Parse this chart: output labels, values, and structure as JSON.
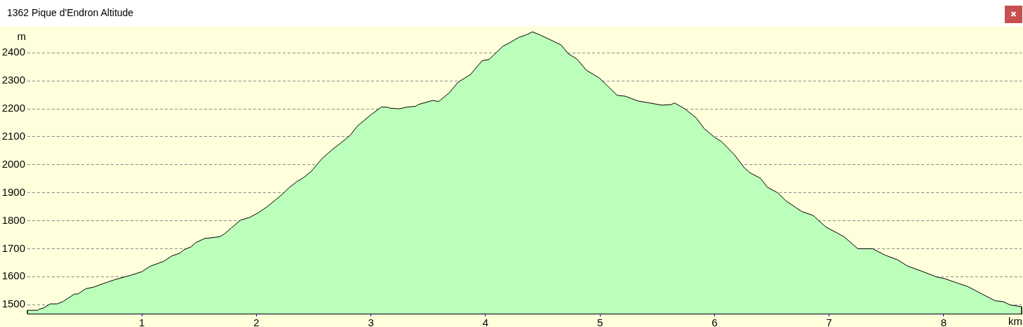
{
  "chart_data": {
    "type": "area",
    "title": "1362 Pique d'Endron Altitude",
    "xlabel": "km",
    "ylabel": "m",
    "x": [
      0,
      0.09,
      0.1,
      0.14,
      0.2,
      0.26,
      0.31,
      0.41,
      0.44,
      0.51,
      0.58,
      0.68,
      0.76,
      0.9,
      1.0,
      1.07,
      1.19,
      1.26,
      1.33,
      1.37,
      1.43,
      1.47,
      1.55,
      1.58,
      1.68,
      1.72,
      1.78,
      1.86,
      1.94,
      2.01,
      2.09,
      2.21,
      2.29,
      2.35,
      2.41,
      2.48,
      2.57,
      2.66,
      2.74,
      2.82,
      2.88,
      3.0,
      3.09,
      3.14,
      3.17,
      3.25,
      3.31,
      3.39,
      3.41,
      3.54,
      3.59,
      3.68,
      3.76,
      3.87,
      3.97,
      4.03,
      4.15,
      4.21,
      4.29,
      4.36,
      4.41,
      4.47,
      4.6,
      4.66,
      4.72,
      4.8,
      4.88,
      4.99,
      5.07,
      5.15,
      5.22,
      5.33,
      5.43,
      5.54,
      5.62,
      5.65,
      5.74,
      5.84,
      5.91,
      6.0,
      6.06,
      6.17,
      6.26,
      6.31,
      6.4,
      6.46,
      6.55,
      6.62,
      6.76,
      6.86,
      6.97,
      7.13,
      7.25,
      7.38,
      7.49,
      7.6,
      7.68,
      7.82,
      7.94,
      8.01,
      8.13,
      8.21,
      8.35,
      8.45,
      8.52,
      8.58,
      8.68
    ],
    "values": [
      1480,
      1480,
      1484,
      1488,
      1503,
      1503,
      1511,
      1538,
      1538,
      1557,
      1563,
      1578,
      1589,
      1605,
      1618,
      1637,
      1655,
      1674,
      1684,
      1697,
      1707,
      1722,
      1737,
      1738,
      1743,
      1753,
      1774,
      1802,
      1812,
      1827,
      1849,
      1889,
      1920,
      1939,
      1954,
      1977,
      2021,
      2054,
      2079,
      2106,
      2138,
      2179,
      2206,
      2206,
      2202,
      2200,
      2206,
      2209,
      2215,
      2230,
      2226,
      2256,
      2295,
      2323,
      2372,
      2376,
      2423,
      2436,
      2455,
      2465,
      2475,
      2465,
      2440,
      2428,
      2398,
      2377,
      2338,
      2311,
      2280,
      2248,
      2245,
      2228,
      2221,
      2213,
      2215,
      2221,
      2200,
      2167,
      2129,
      2098,
      2083,
      2037,
      1989,
      1971,
      1952,
      1920,
      1900,
      1872,
      1833,
      1819,
      1778,
      1743,
      1700,
      1700,
      1677,
      1660,
      1639,
      1618,
      1599,
      1593,
      1576,
      1565,
      1535,
      1514,
      1511,
      1499,
      1493
    ],
    "color": "#bbffbb",
    "xlim": [
      0,
      8.68
    ],
    "xticks": [
      1,
      2,
      3,
      4,
      5,
      6,
      7,
      8
    ],
    "ylim": [
      1468,
      2496
    ],
    "yticks": [
      1500,
      1600,
      1700,
      1800,
      1900,
      2000,
      2100,
      2200,
      2300,
      2400
    ],
    "grid": "y"
  }
}
